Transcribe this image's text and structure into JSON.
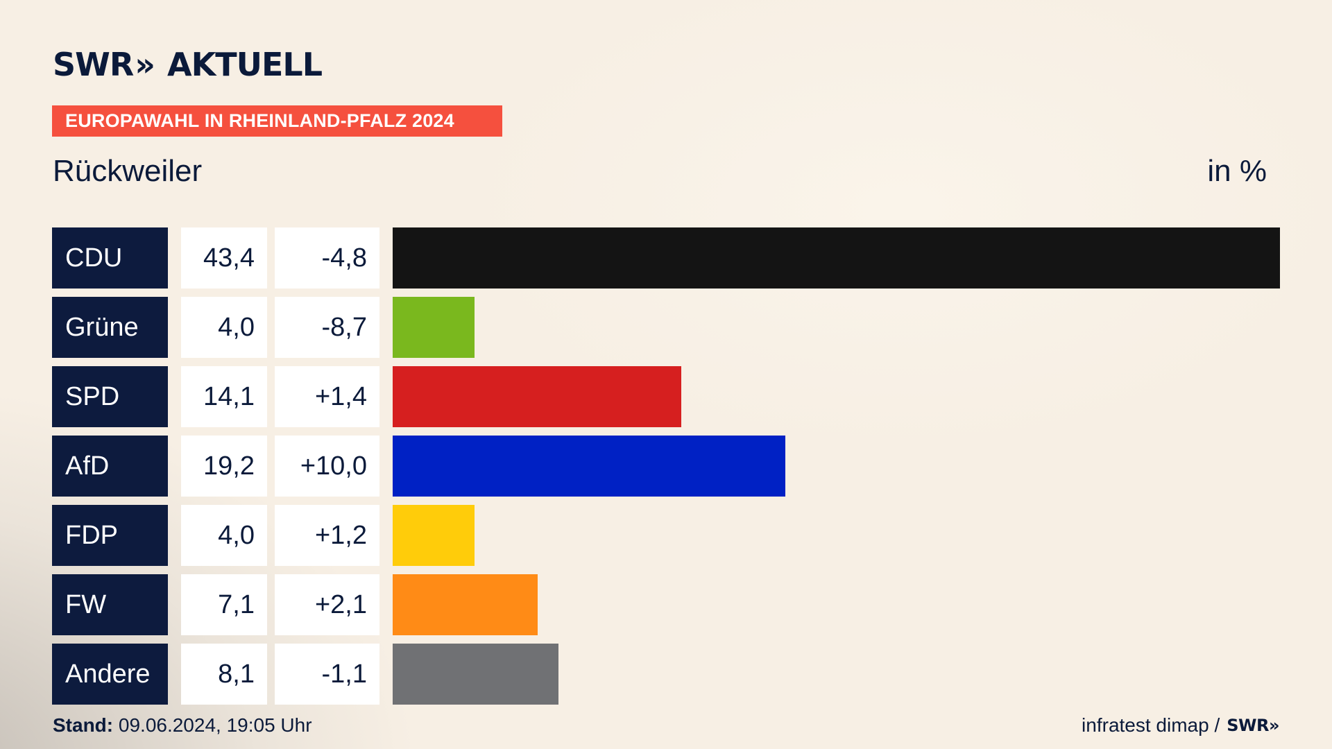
{
  "brand": {
    "logo_main": "SWR",
    "logo_chevrons": "»",
    "logo_sub": "AKTUELL"
  },
  "header": {
    "kicker": "EUROPAWAHL IN RHEINLAND-PFALZ 2024",
    "place": "Rückweiler",
    "unit": "in %"
  },
  "rows": [
    {
      "party": "CDU",
      "value": "43,4",
      "diff": "-4,8"
    },
    {
      "party": "Grüne",
      "value": "4,0",
      "diff": "-8,7"
    },
    {
      "party": "SPD",
      "value": "14,1",
      "diff": "+1,4"
    },
    {
      "party": "AfD",
      "value": "19,2",
      "diff": "+10,0"
    },
    {
      "party": "FDP",
      "value": "4,0",
      "diff": "+1,2"
    },
    {
      "party": "FW",
      "value": "7,1",
      "diff": "+2,1"
    },
    {
      "party": "Andere",
      "value": "8,1",
      "diff": "-1,1"
    }
  ],
  "chart_data": {
    "type": "bar",
    "orientation": "horizontal",
    "title": "Rückweiler",
    "categories": [
      "CDU",
      "Grüne",
      "SPD",
      "AfD",
      "FDP",
      "FW",
      "Andere"
    ],
    "values": [
      43.4,
      4.0,
      14.1,
      19.2,
      4.0,
      7.1,
      8.1
    ],
    "changes": [
      -4.8,
      -8.7,
      1.4,
      10.0,
      1.2,
      2.1,
      -1.1
    ],
    "colors": [
      "#141414",
      "#7ab81e",
      "#d61f1f",
      "#0021c4",
      "#ffcc0a",
      "#ff8b16",
      "#707174"
    ],
    "unit": "in %",
    "xlim": [
      0,
      43.4
    ],
    "grid": false,
    "legend": "none"
  },
  "footer": {
    "stand_label": "Stand:",
    "stand_value": "09.06.2024, 19:05 Uhr",
    "source": "infratest dimap /",
    "source_logo": "SWR»"
  }
}
